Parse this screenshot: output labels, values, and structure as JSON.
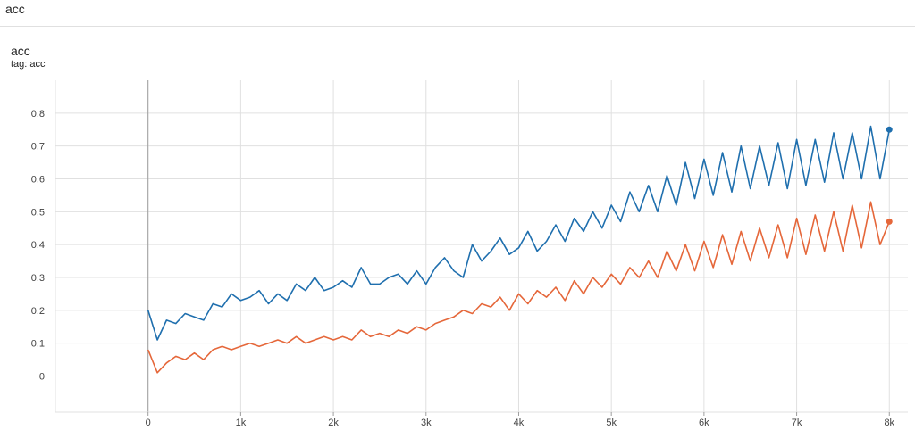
{
  "section": {
    "title": "acc"
  },
  "card": {
    "title": "acc",
    "tag": "tag: acc"
  },
  "colors": {
    "series_blue": "#1f6fae",
    "series_orange": "#e5673a",
    "grid": "#e0e0e0",
    "axis": "#9e9e9e"
  },
  "chart_data": {
    "type": "line",
    "title": "acc",
    "subtitle": "tag: acc",
    "xlabel": "",
    "ylabel": "",
    "xlim": [
      -1000,
      8200
    ],
    "ylim": [
      -0.11,
      0.9
    ],
    "x_ticks": [
      0,
      1000,
      2000,
      3000,
      4000,
      5000,
      6000,
      7000,
      8000
    ],
    "x_tick_labels": [
      "0",
      "1k",
      "2k",
      "3k",
      "4k",
      "5k",
      "6k",
      "7k",
      "8k"
    ],
    "y_ticks": [
      0,
      0.1,
      0.2,
      0.3,
      0.4,
      0.5,
      0.6,
      0.7,
      0.8
    ],
    "y_tick_labels": [
      "0",
      "0.1",
      "0.2",
      "0.3",
      "0.4",
      "0.5",
      "0.6",
      "0.7",
      "0.8"
    ],
    "grid": true,
    "series": [
      {
        "color": "#1f6fae",
        "x": [
          0,
          100,
          200,
          300,
          400,
          500,
          600,
          700,
          800,
          900,
          1000,
          1100,
          1200,
          1300,
          1400,
          1500,
          1600,
          1700,
          1800,
          1900,
          2000,
          2100,
          2200,
          2300,
          2400,
          2500,
          2600,
          2700,
          2800,
          2900,
          3000,
          3100,
          3200,
          3300,
          3400,
          3500,
          3600,
          3700,
          3800,
          3900,
          4000,
          4100,
          4200,
          4300,
          4400,
          4500,
          4600,
          4700,
          4800,
          4900,
          5000,
          5100,
          5200,
          5300,
          5400,
          5500,
          5600,
          5700,
          5800,
          5900,
          6000,
          6100,
          6200,
          6300,
          6400,
          6500,
          6600,
          6700,
          6800,
          6900,
          7000,
          7100,
          7200,
          7300,
          7400,
          7500,
          7600,
          7700,
          7800,
          7900,
          8000
        ],
        "y": [
          0.2,
          0.11,
          0.17,
          0.16,
          0.19,
          0.18,
          0.17,
          0.22,
          0.21,
          0.25,
          0.23,
          0.24,
          0.26,
          0.22,
          0.25,
          0.23,
          0.28,
          0.26,
          0.3,
          0.26,
          0.27,
          0.29,
          0.27,
          0.33,
          0.28,
          0.28,
          0.3,
          0.31,
          0.28,
          0.32,
          0.28,
          0.33,
          0.36,
          0.32,
          0.3,
          0.4,
          0.35,
          0.38,
          0.42,
          0.37,
          0.39,
          0.44,
          0.38,
          0.41,
          0.46,
          0.41,
          0.48,
          0.44,
          0.5,
          0.45,
          0.52,
          0.47,
          0.56,
          0.5,
          0.58,
          0.5,
          0.61,
          0.52,
          0.65,
          0.54,
          0.66,
          0.55,
          0.68,
          0.56,
          0.7,
          0.57,
          0.7,
          0.58,
          0.71,
          0.57,
          0.72,
          0.58,
          0.72,
          0.59,
          0.74,
          0.6,
          0.74,
          0.6,
          0.76,
          0.6,
          0.75
        ]
      },
      {
        "color": "#e5673a",
        "x": [
          0,
          100,
          200,
          300,
          400,
          500,
          600,
          700,
          800,
          900,
          1000,
          1100,
          1200,
          1300,
          1400,
          1500,
          1600,
          1700,
          1800,
          1900,
          2000,
          2100,
          2200,
          2300,
          2400,
          2500,
          2600,
          2700,
          2800,
          2900,
          3000,
          3100,
          3200,
          3300,
          3400,
          3500,
          3600,
          3700,
          3800,
          3900,
          4000,
          4100,
          4200,
          4300,
          4400,
          4500,
          4600,
          4700,
          4800,
          4900,
          5000,
          5100,
          5200,
          5300,
          5400,
          5500,
          5600,
          5700,
          5800,
          5900,
          6000,
          6100,
          6200,
          6300,
          6400,
          6500,
          6600,
          6700,
          6800,
          6900,
          7000,
          7100,
          7200,
          7300,
          7400,
          7500,
          7600,
          7700,
          7800,
          7900,
          8000
        ],
        "y": [
          0.08,
          0.01,
          0.04,
          0.06,
          0.05,
          0.07,
          0.05,
          0.08,
          0.09,
          0.08,
          0.09,
          0.1,
          0.09,
          0.1,
          0.11,
          0.1,
          0.12,
          0.1,
          0.11,
          0.12,
          0.11,
          0.12,
          0.11,
          0.14,
          0.12,
          0.13,
          0.12,
          0.14,
          0.13,
          0.15,
          0.14,
          0.16,
          0.17,
          0.18,
          0.2,
          0.19,
          0.22,
          0.21,
          0.24,
          0.2,
          0.25,
          0.22,
          0.26,
          0.24,
          0.27,
          0.23,
          0.29,
          0.25,
          0.3,
          0.27,
          0.31,
          0.28,
          0.33,
          0.3,
          0.35,
          0.3,
          0.38,
          0.32,
          0.4,
          0.32,
          0.41,
          0.33,
          0.43,
          0.34,
          0.44,
          0.35,
          0.45,
          0.36,
          0.46,
          0.36,
          0.48,
          0.37,
          0.49,
          0.38,
          0.5,
          0.38,
          0.52,
          0.39,
          0.53,
          0.4,
          0.47
        ]
      }
    ]
  }
}
